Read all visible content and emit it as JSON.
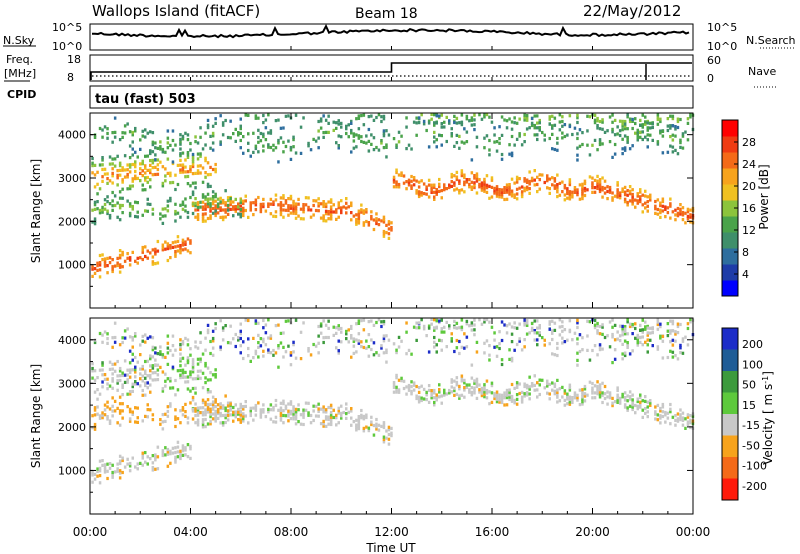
{
  "header": {
    "station": "Wallops Island (fitACF)",
    "beam": "Beam 18",
    "date": "22/May/2012"
  },
  "summary_panel": {
    "left_labels": {
      "nsky": "N.Sky",
      "freq": "Freq.",
      "freq_unit": "[MHz]",
      "cpid": "CPID"
    },
    "right_labels": {
      "nsearch": "N.Search",
      "nave": "Nave"
    },
    "noise_ticks_left": [
      "10^5",
      "10^0"
    ],
    "noise_ticks_right": [
      "10^5",
      "10^0"
    ],
    "freq_ticks": [
      "18",
      "8"
    ],
    "nave_ticks": [
      "60",
      "0"
    ],
    "cpid_text": "tau (fast) 503"
  },
  "chart_data": [
    {
      "type": "heatmap",
      "name": "power",
      "ylabel": "Slant Range [km]",
      "ylim": [
        0,
        4500
      ],
      "yticks": [
        1000,
        2000,
        3000,
        4000
      ],
      "colorbar_label": "Power [dB]",
      "colorbar_ticks": [
        4,
        8,
        12,
        16,
        20,
        24,
        28
      ],
      "colorbar_range": [
        0,
        32
      ],
      "palette": [
        "#0000ff",
        "#1e3ca8",
        "#2e6e9e",
        "#3f8f6a",
        "#4aa34a",
        "#8cc43c",
        "#f0c020",
        "#f7a31c",
        "#f46a18",
        "#ef3b12",
        "#ff0000"
      ]
    },
    {
      "type": "heatmap",
      "name": "velocity",
      "ylabel": "Slant Range [km]",
      "ylim": [
        0,
        4500
      ],
      "yticks": [
        1000,
        2000,
        3000,
        4000
      ],
      "colorbar_label": "Velocity [ m s",
      "colorbar_exponent": "-1",
      "colorbar_unit_close": "]",
      "colorbar_ticks": [
        "200",
        "100",
        "50",
        "15",
        "-15",
        "-50",
        "-100",
        "-200"
      ],
      "palette": [
        "#1c2cc8",
        "#1f5c96",
        "#3c9a3c",
        "#5ec93c",
        "#c8c8c8",
        "#f7a31c",
        "#f46a18",
        "#ff1a0a"
      ]
    }
  ],
  "time_axis": {
    "xlabel": "Time UT",
    "range_hours": [
      0,
      24
    ],
    "ticks": [
      "00:00",
      "04:00",
      "08:00",
      "12:00",
      "16:00",
      "20:00",
      "00:00"
    ]
  }
}
